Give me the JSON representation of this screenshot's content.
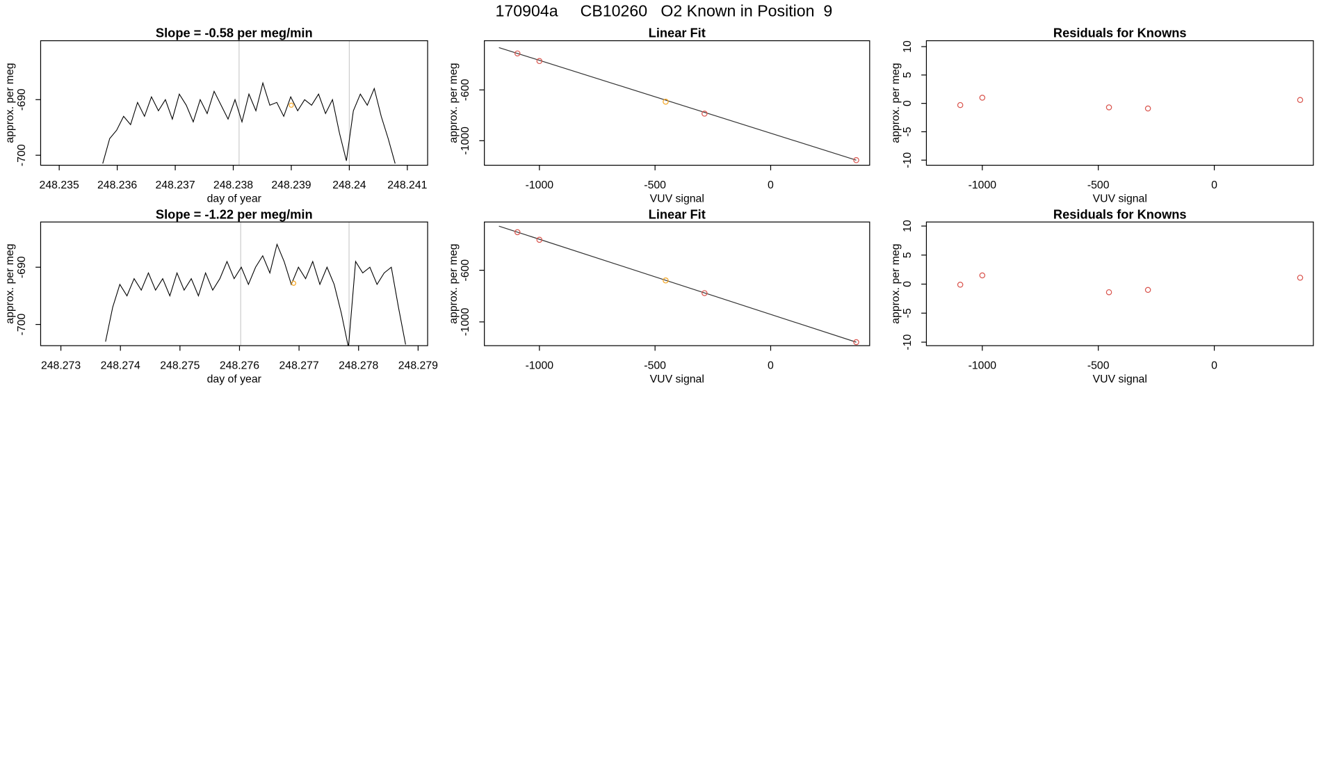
{
  "title": "170904a     CB10260   O2 Known in Position  9",
  "chart_data": [
    {
      "type": "line",
      "title": "Slope =  -0.58  per meg/min",
      "xlabel": "day of year",
      "ylabel": "approx. per meg",
      "color": "#000000",
      "x": [
        248.23575,
        248.23587,
        248.23599,
        248.23611,
        248.23623,
        248.23635,
        248.23647,
        248.23659,
        248.23671,
        248.23683,
        248.23695,
        248.23707,
        248.23719,
        248.23731,
        248.23743,
        248.23755,
        248.23767,
        248.23779,
        248.23791,
        248.23803,
        248.23815,
        248.23827,
        248.23839,
        248.23851,
        248.23863,
        248.23875,
        248.23887,
        248.23899,
        248.23911,
        248.23923,
        248.23935,
        248.23947,
        248.23959,
        248.23971,
        248.23983,
        248.23995,
        248.24007,
        248.24019,
        248.24031,
        248.24043,
        248.24055,
        248.24067,
        248.24079
      ],
      "values": [
        -701.5,
        -697,
        -695.5,
        -693,
        -694.5,
        -690.5,
        -693,
        -689.5,
        -692,
        -690,
        -693.5,
        -689,
        -691,
        -694,
        -690,
        -692.5,
        -688.5,
        -691,
        -693.5,
        -690,
        -694,
        -689,
        -692,
        -687,
        -691,
        -690.5,
        -693,
        -689.5,
        -692,
        -690,
        -691,
        -689,
        -692.5,
        -690,
        -696,
        -701,
        -692,
        -689,
        -691,
        -688,
        -693,
        -697,
        -701.5
      ],
      "xlim": [
        248.23468,
        248.24135
      ],
      "ylim": [
        -701.8,
        -679.4
      ],
      "xticks": [
        248.235,
        248.236,
        248.237,
        248.238,
        248.239,
        248.24,
        {
          "value": 248.241,
          "label": "248.241"
        }
      ],
      "yticks": [
        -700,
        -690
      ],
      "vlines": [
        248.2381,
        248.24
      ],
      "vline_color": "#cccccc",
      "highlight": {
        "x": 248.239,
        "y": -691,
        "color": "#f5a623"
      }
    },
    {
      "type": "scatter",
      "title": "Linear Fit",
      "xlabel": "VUV signal",
      "ylabel": "approx. per meg",
      "x": [
        -1095,
        -1000,
        -454,
        -286,
        370
      ],
      "values": [
        -313,
        -373,
        -693,
        -787,
        -1153
      ],
      "point_colors": [
        "#d9544d",
        "#d9544d",
        "#f5a623",
        "#d9544d",
        "#d9544d"
      ],
      "fit_line": {
        "x": [
          -1175,
          370
        ],
        "values": [
          -267,
          -1153
        ],
        "color": "#333333"
      },
      "xlim": [
        -1238,
        428
      ],
      "ylim": [
        -1193,
        -213
      ],
      "xticks": [
        -1000,
        -500,
        0
      ],
      "yticks": [
        -1000,
        -600
      ]
    },
    {
      "type": "scatter",
      "title": "Residuals for Knowns",
      "xlabel": "VUV signal",
      "ylabel": "approx. per meg",
      "x": [
        -1095,
        -1000,
        -454,
        -286,
        370
      ],
      "values": [
        -0.3,
        1.0,
        -0.7,
        -0.9,
        0.6
      ],
      "point_colors": [
        "#d9544d",
        "#d9544d",
        "#d9544d",
        "#d9544d",
        "#d9544d"
      ],
      "xlim": [
        -1241,
        427
      ],
      "ylim": [
        -10.9,
        11.04
      ],
      "xticks": [
        -1000,
        -500,
        0
      ],
      "yticks": [
        -10,
        -5,
        0,
        5,
        10
      ]
    },
    {
      "type": "line",
      "title": "Slope =  -1.22  per meg/min",
      "xlabel": "day of year",
      "ylabel": "approx. per meg",
      "color": "#000000",
      "x": [
        248.27375,
        248.27387,
        248.27399,
        248.27411,
        248.27423,
        248.27435,
        248.27447,
        248.27459,
        248.27471,
        248.27483,
        248.27495,
        248.27507,
        248.27519,
        248.27531,
        248.27543,
        248.27555,
        248.27567,
        248.27579,
        248.27591,
        248.27603,
        248.27615,
        248.27627,
        248.27639,
        248.27651,
        248.27663,
        248.27675,
        248.27687,
        248.27699,
        248.27711,
        248.27723,
        248.27735,
        248.27747,
        248.27759,
        248.27771,
        248.27783,
        248.27795,
        248.27807,
        248.27819,
        248.27831,
        248.27843,
        248.27855,
        248.27867,
        248.27879
      ],
      "values": [
        -703,
        -697,
        -693,
        -695,
        -692,
        -694,
        -691,
        -694,
        -692,
        -695,
        -691,
        -694,
        -692,
        -695,
        -691,
        -694,
        -692,
        -689,
        -692,
        -690,
        -693,
        -690,
        -688,
        -691,
        -686,
        -689,
        -693,
        -690,
        -692,
        -689,
        -693,
        -690,
        -693,
        -698,
        -704,
        -689,
        -691,
        -690,
        -693,
        -691,
        -690,
        -697,
        -703.5
      ],
      "xlim": [
        248.27266,
        248.27916
      ],
      "ylim": [
        -703.7,
        -682.1
      ],
      "xticks": [
        248.273,
        248.274,
        248.275,
        248.276,
        248.277,
        248.278,
        248.279
      ],
      "yticks": [
        -700,
        -690
      ],
      "vlines": [
        248.27602,
        248.27784
      ],
      "vline_color": "#cccccc",
      "highlight": {
        "x": 248.27691,
        "y": -692.8,
        "color": "#f5a623"
      }
    },
    {
      "type": "scatter",
      "title": "Linear Fit",
      "xlabel": "VUV signal",
      "ylabel": "approx. per meg",
      "x": [
        -1095,
        -1000,
        -454,
        -286,
        370
      ],
      "values": [
        -305,
        -364,
        -679,
        -777,
        -1157
      ],
      "point_colors": [
        "#d9544d",
        "#d9544d",
        "#f5a623",
        "#d9544d",
        "#d9544d"
      ],
      "fit_line": {
        "x": [
          -1175,
          370
        ],
        "values": [
          -258,
          -1157
        ],
        "color": "#333333"
      },
      "xlim": [
        -1238,
        428
      ],
      "ylim": [
        -1184,
        -226
      ],
      "xticks": [
        -1000,
        -500,
        0
      ],
      "yticks": [
        -1000,
        -600
      ]
    },
    {
      "type": "scatter",
      "title": "Residuals for Knowns",
      "xlabel": "VUV signal",
      "ylabel": "approx. per meg",
      "x": [
        -1095,
        -1000,
        -454,
        -286,
        370
      ],
      "values": [
        -0.1,
        1.5,
        -1.4,
        -1.0,
        1.1
      ],
      "point_colors": [
        "#d9544d",
        "#d9544d",
        "#d9544d",
        "#d9544d",
        "#d9544d"
      ],
      "xlim": [
        -1241,
        427
      ],
      "ylim": [
        -10.6,
        10.7
      ],
      "xticks": [
        -1000,
        -500,
        0
      ],
      "yticks": [
        -10,
        -5,
        0,
        5,
        10
      ]
    }
  ]
}
